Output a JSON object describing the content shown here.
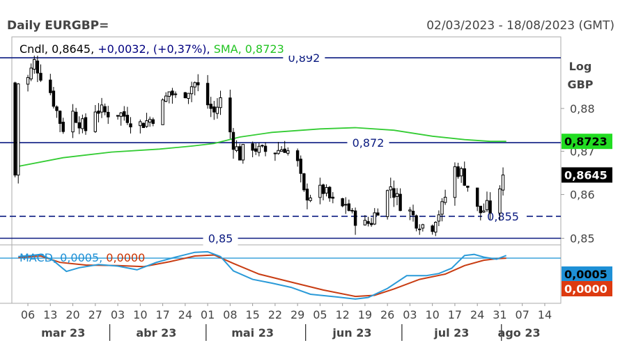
{
  "header": {
    "title": "Daily EURGBP=",
    "date_range": "02/03/2023 - 18/08/2023 (GMT)"
  },
  "legend": {
    "main": [
      {
        "text": "Cndl,",
        "color": "#000000"
      },
      {
        "text": " 0,8645,",
        "color": "#000000"
      },
      {
        "text": " +0,0032,",
        "color": "#000080"
      },
      {
        "text": " (+0,37%),",
        "color": "#000080"
      },
      {
        "text": " SMA,",
        "color": "#22c422"
      },
      {
        "text": " 0,8723",
        "color": "#22c422"
      }
    ],
    "macd": [
      {
        "text": "MACD,",
        "color": "#1e90d6"
      },
      {
        "text": " 0,0005,",
        "color": "#1e90d6"
      },
      {
        "text": " 0,0000",
        "color": "#cc3300"
      }
    ]
  },
  "axis": {
    "scale_label_line1": "Log",
    "scale_label_line2": "GBP",
    "price_ticks": [
      {
        "value": 0.88,
        "label": "0,88"
      },
      {
        "value": 0.87,
        "label": "0,87"
      },
      {
        "value": 0.86,
        "label": "0,86"
      },
      {
        "value": 0.85,
        "label": "0,85"
      }
    ],
    "day_ticks": [
      {
        "day": 4,
        "label": "06"
      },
      {
        "day": 11,
        "label": "13"
      },
      {
        "day": 18,
        "label": "20"
      },
      {
        "day": 25,
        "label": "27"
      },
      {
        "day": 32,
        "label": "03"
      },
      {
        "day": 39,
        "label": "10"
      },
      {
        "day": 46,
        "label": "17"
      },
      {
        "day": 53,
        "label": "24"
      },
      {
        "day": 60,
        "label": "01"
      },
      {
        "day": 67,
        "label": "08"
      },
      {
        "day": 74,
        "label": "15"
      },
      {
        "day": 81,
        "label": "22"
      },
      {
        "day": 88,
        "label": "29"
      },
      {
        "day": 95,
        "label": "05"
      },
      {
        "day": 102,
        "label": "12"
      },
      {
        "day": 109,
        "label": "19"
      },
      {
        "day": 116,
        "label": "26"
      },
      {
        "day": 123,
        "label": "03"
      },
      {
        "day": 130,
        "label": "10"
      },
      {
        "day": 137,
        "label": "17"
      },
      {
        "day": 144,
        "label": "24"
      },
      {
        "day": 151,
        "label": "31"
      },
      {
        "day": 158,
        "label": "07"
      },
      {
        "day": 165,
        "label": "14"
      }
    ],
    "months": [
      {
        "label": "mar 23",
        "day": 15,
        "sep_day": 29.5
      },
      {
        "label": "abr 23",
        "day": 44,
        "sep_day": 59.5
      },
      {
        "label": "mai 23",
        "day": 74,
        "sep_day": 90.5
      },
      {
        "label": "jun 23",
        "day": 105,
        "sep_day": 120.5
      },
      {
        "label": "jul 23",
        "day": 136,
        "sep_day": 151.5
      },
      {
        "label": "ago 23",
        "day": 157
      }
    ]
  },
  "badges": {
    "sma": {
      "value": 0.8723,
      "label": "0,8723",
      "bg": "#22dd22",
      "fg": "#000000"
    },
    "close": {
      "value": 0.8645,
      "label": "0,8645",
      "bg": "#000000",
      "fg": "#ffffff"
    },
    "macd": {
      "label": "0,0005",
      "bg": "#1e90d6",
      "fg": "#000000"
    },
    "signal": {
      "label": "0,0000",
      "bg": "#dd3a10",
      "fg": "#ffffff"
    }
  },
  "chart_data": {
    "type": "candlestick",
    "symbol": "EURGBP=",
    "x_unit": "days since 02/03/2023",
    "y_scale": "log",
    "ylim": [
      0.8485,
      0.897
    ],
    "xlim": [
      -1,
      170
    ],
    "hlines": [
      {
        "value": 0.892,
        "label": "0,892",
        "style": "solid",
        "label_day": 90
      },
      {
        "value": 0.872,
        "label": "0,872",
        "style": "solid",
        "label_day": 110
      },
      {
        "value": 0.855,
        "label": "0,855",
        "style": "dashed",
        "label_day": 152
      },
      {
        "value": 0.85,
        "label": "0,85",
        "style": "solid",
        "label_day": 64
      }
    ],
    "sma": {
      "name": "SMA",
      "points": [
        [
          1,
          0.8665
        ],
        [
          15,
          0.8685
        ],
        [
          30,
          0.8698
        ],
        [
          45,
          0.8705
        ],
        [
          55,
          0.8712
        ],
        [
          62,
          0.8718
        ],
        [
          70,
          0.8733
        ],
        [
          80,
          0.8744
        ],
        [
          95,
          0.8752
        ],
        [
          106,
          0.8755
        ],
        [
          118,
          0.8749
        ],
        [
          130,
          0.8735
        ],
        [
          140,
          0.8727
        ],
        [
          148,
          0.8723
        ],
        [
          153,
          0.8723
        ]
      ]
    },
    "path": [
      [
        1,
        0.886
      ],
      [
        4,
        0.887
      ],
      [
        6,
        0.891
      ],
      [
        8,
        0.888
      ],
      [
        11,
        0.884
      ],
      [
        14,
        0.877
      ],
      [
        16,
        0.874
      ],
      [
        18,
        0.879
      ],
      [
        20,
        0.877
      ],
      [
        22,
        0.875
      ],
      [
        25,
        0.88
      ],
      [
        28,
        0.879
      ],
      [
        32,
        0.879
      ],
      [
        35,
        0.878
      ],
      [
        38,
        0.876
      ],
      [
        41,
        0.877
      ],
      [
        43,
        0.878
      ],
      [
        46,
        0.881
      ],
      [
        48,
        0.884
      ],
      [
        51,
        0.882
      ],
      [
        53,
        0.884
      ],
      [
        56,
        0.886
      ],
      [
        58,
        0.884
      ],
      [
        60,
        0.881
      ],
      [
        62,
        0.879
      ],
      [
        64,
        0.882
      ],
      [
        66,
        0.877
      ],
      [
        68,
        0.872
      ],
      [
        70,
        0.869
      ],
      [
        73,
        0.872
      ],
      [
        76,
        0.87
      ],
      [
        78,
        0.87
      ],
      [
        81,
        0.87
      ],
      [
        84,
        0.871
      ],
      [
        86,
        0.869
      ],
      [
        88,
        0.867
      ],
      [
        90,
        0.86
      ],
      [
        93,
        0.86
      ],
      [
        96,
        0.861
      ],
      [
        99,
        0.858
      ],
      [
        101,
        0.856
      ],
      [
        103,
        0.858
      ],
      [
        105,
        0.855
      ],
      [
        107,
        0.854
      ],
      [
        109,
        0.853
      ],
      [
        111,
        0.854
      ],
      [
        113,
        0.857
      ],
      [
        115,
        0.859
      ],
      [
        117,
        0.862
      ],
      [
        119,
        0.859
      ],
      [
        121,
        0.857
      ],
      [
        123,
        0.856
      ],
      [
        125,
        0.854
      ],
      [
        127,
        0.853
      ],
      [
        129,
        0.851
      ],
      [
        131,
        0.855
      ],
      [
        133,
        0.857
      ],
      [
        135,
        0.862
      ],
      [
        137,
        0.866
      ],
      [
        139,
        0.865
      ],
      [
        141,
        0.862
      ],
      [
        143,
        0.857
      ],
      [
        145,
        0.856
      ],
      [
        147,
        0.857
      ],
      [
        149,
        0.856
      ],
      [
        151,
        0.86
      ],
      [
        152,
        0.8645
      ]
    ],
    "macd": {
      "ylim": [
        -0.0085,
        0.0025
      ],
      "macd_line": [
        [
          1,
          0.0003
        ],
        [
          5,
          0.0005
        ],
        [
          8,
          0.0007
        ],
        [
          12,
          -0.0005
        ],
        [
          16,
          -0.0025
        ],
        [
          20,
          -0.0018
        ],
        [
          26,
          -0.0012
        ],
        [
          32,
          -0.0015
        ],
        [
          38,
          -0.0022
        ],
        [
          44,
          -0.0008
        ],
        [
          50,
          0.0002
        ],
        [
          56,
          0.0011
        ],
        [
          60,
          0.0012
        ],
        [
          64,
          0.0003
        ],
        [
          68,
          -0.0024
        ],
        [
          74,
          -0.004
        ],
        [
          80,
          -0.0047
        ],
        [
          86,
          -0.0055
        ],
        [
          92,
          -0.0068
        ],
        [
          100,
          -0.0073
        ],
        [
          106,
          -0.0077
        ],
        [
          110,
          -0.0074
        ],
        [
          116,
          -0.0057
        ],
        [
          122,
          -0.0033
        ],
        [
          128,
          -0.0033
        ],
        [
          132,
          -0.0029
        ],
        [
          136,
          -0.0019
        ],
        [
          140,
          0.0005
        ],
        [
          143,
          0.0007
        ],
        [
          146,
          0.0002
        ],
        [
          150,
          -0.0002
        ],
        [
          153,
          0.0005
        ]
      ],
      "signal_line": [
        [
          1,
          0.0001
        ],
        [
          8,
          0.0004
        ],
        [
          14,
          -0.0008
        ],
        [
          22,
          -0.0013
        ],
        [
          32,
          -0.0014
        ],
        [
          40,
          -0.0016
        ],
        [
          48,
          -0.0007
        ],
        [
          56,
          0.0004
        ],
        [
          62,
          0.0006
        ],
        [
          68,
          -0.001
        ],
        [
          76,
          -0.003
        ],
        [
          86,
          -0.0045
        ],
        [
          96,
          -0.006
        ],
        [
          106,
          -0.0072
        ],
        [
          112,
          -0.007
        ],
        [
          118,
          -0.0058
        ],
        [
          126,
          -0.004
        ],
        [
          134,
          -0.003
        ],
        [
          140,
          -0.0014
        ],
        [
          146,
          -0.0004
        ],
        [
          150,
          -0.0001
        ],
        [
          153,
          0.0
        ]
      ]
    }
  }
}
